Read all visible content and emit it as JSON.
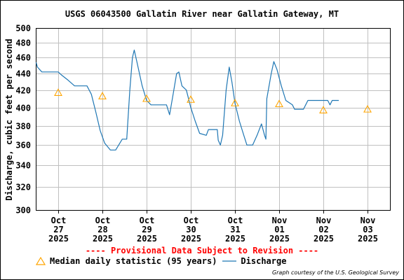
{
  "chart_data": {
    "type": "line",
    "title": "USGS 06043500 Gallatin River near Gallatin Gateway, MT",
    "ylabel": "Discharge, cubic feet per second",
    "xlabel": "",
    "y_scale": "log",
    "ylim": [
      300,
      500
    ],
    "y_ticks": [
      300,
      320,
      340,
      360,
      380,
      400,
      420,
      440,
      460,
      480,
      500
    ],
    "x_ticks": [
      {
        "day": "Oct",
        "date": "27",
        "year": "2025"
      },
      {
        "day": "Oct",
        "date": "28",
        "year": "2025"
      },
      {
        "day": "Oct",
        "date": "29",
        "year": "2025"
      },
      {
        "day": "Oct",
        "date": "30",
        "year": "2025"
      },
      {
        "day": "Oct",
        "date": "31",
        "year": "2025"
      },
      {
        "day": "Nov",
        "date": "01",
        "year": "2025"
      },
      {
        "day": "Nov",
        "date": "02",
        "year": "2025"
      },
      {
        "day": "Nov",
        "date": "03",
        "year": "2025"
      }
    ],
    "grid": true,
    "series": [
      {
        "name": "Discharge",
        "color": "#1f77b4",
        "points": [
          [
            -0.5,
            454
          ],
          [
            -0.47,
            448
          ],
          [
            -0.37,
            442
          ],
          [
            0.0,
            442
          ],
          [
            0.08,
            438
          ],
          [
            0.22,
            432
          ],
          [
            0.37,
            425
          ],
          [
            0.65,
            425
          ],
          [
            0.75,
            415
          ],
          [
            0.85,
            395
          ],
          [
            0.95,
            375
          ],
          [
            1.05,
            362
          ],
          [
            1.18,
            355
          ],
          [
            1.3,
            355
          ],
          [
            1.45,
            366
          ],
          [
            1.55,
            366
          ],
          [
            1.62,
            420
          ],
          [
            1.68,
            460
          ],
          [
            1.72,
            470
          ],
          [
            1.78,
            455
          ],
          [
            1.9,
            425
          ],
          [
            2.0,
            408
          ],
          [
            2.1,
            403
          ],
          [
            2.45,
            403
          ],
          [
            2.52,
            392
          ],
          [
            2.6,
            415
          ],
          [
            2.68,
            440
          ],
          [
            2.73,
            442
          ],
          [
            2.8,
            425
          ],
          [
            2.9,
            420
          ],
          [
            3.0,
            400
          ],
          [
            3.1,
            385
          ],
          [
            3.2,
            372
          ],
          [
            3.35,
            370
          ],
          [
            3.4,
            376
          ],
          [
            3.6,
            376
          ],
          [
            3.62,
            365
          ],
          [
            3.67,
            360
          ],
          [
            3.72,
            370
          ],
          [
            3.8,
            420
          ],
          [
            3.87,
            448
          ],
          [
            3.93,
            430
          ],
          [
            4.0,
            405
          ],
          [
            4.1,
            385
          ],
          [
            4.2,
            370
          ],
          [
            4.27,
            360
          ],
          [
            4.4,
            360
          ],
          [
            4.5,
            370
          ],
          [
            4.6,
            382
          ],
          [
            4.67,
            370
          ],
          [
            4.7,
            366
          ],
          [
            4.72,
            410
          ],
          [
            4.82,
            440
          ],
          [
            4.88,
            455
          ],
          [
            4.95,
            445
          ],
          [
            5.05,
            425
          ],
          [
            5.15,
            408
          ],
          [
            5.3,
            403
          ],
          [
            5.35,
            398
          ],
          [
            5.55,
            398
          ],
          [
            5.6,
            403
          ],
          [
            5.65,
            408
          ],
          [
            6.1,
            408
          ],
          [
            6.15,
            403
          ],
          [
            6.2,
            408
          ],
          [
            6.35,
            408
          ]
        ]
      },
      {
        "name": "Median daily statistic (95 years)",
        "color": "#ffa500",
        "points": [
          [
            0.0,
            417
          ],
          [
            1.0,
            413
          ],
          [
            2.0,
            410
          ],
          [
            3.0,
            409
          ],
          [
            4.0,
            405
          ],
          [
            5.0,
            404
          ],
          [
            6.0,
            397
          ],
          [
            7.0,
            398
          ]
        ]
      }
    ]
  },
  "footer": {
    "provisional": "---- Provisional Data Subject to Revision ----",
    "legend_median": "Median daily statistic (95 years)",
    "legend_discharge": "Discharge",
    "courtesy": "Graph courtesy of the U.S. Geological Survey"
  },
  "colors": {
    "discharge": "#1f77b4",
    "median": "#ffa500",
    "grid": "#c0c0c0",
    "provisional": "#ff0000"
  }
}
